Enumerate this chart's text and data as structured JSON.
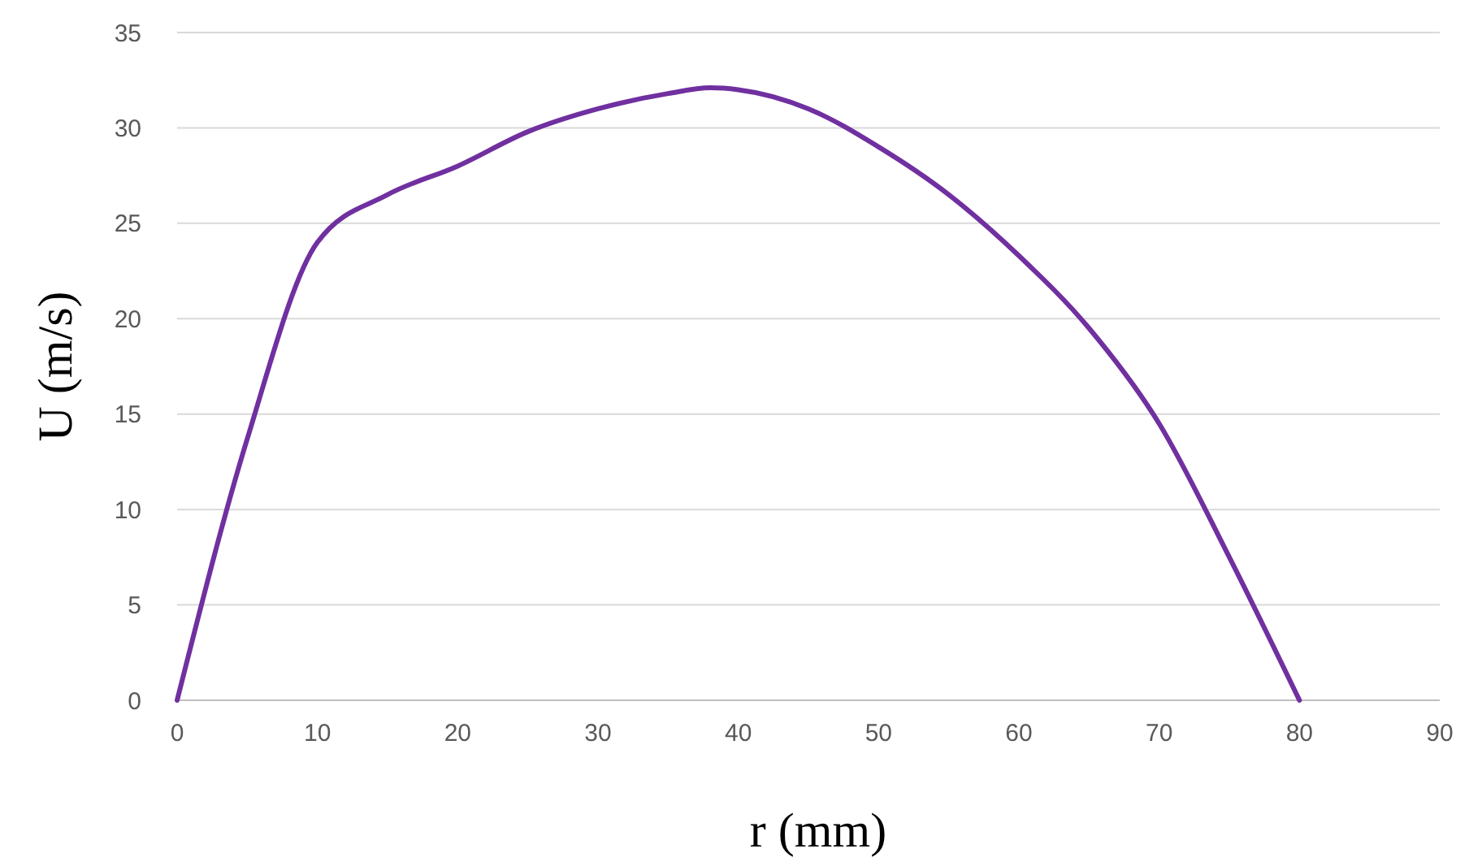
{
  "chart_data": {
    "type": "line",
    "xlabel": "r (mm)",
    "ylabel": "U (m/s)",
    "x": [
      0,
      5,
      10,
      15,
      20,
      25,
      30,
      35,
      38,
      40,
      45,
      50,
      55,
      60,
      65,
      70,
      75,
      80
    ],
    "series": [
      {
        "color": "#7030a0",
        "values": [
          0,
          13.7,
          24,
          26.5,
          28,
          29.8,
          31,
          31.8,
          32.1,
          32,
          31,
          29,
          26.5,
          23.3,
          19.5,
          14.5,
          7.5,
          0
        ]
      }
    ],
    "xlim": [
      0,
      90
    ],
    "xticks": [
      0,
      10,
      20,
      30,
      40,
      50,
      60,
      70,
      80,
      90
    ],
    "ylim": [
      0,
      35
    ],
    "yticks": [
      0,
      5,
      10,
      15,
      20,
      25,
      30,
      35
    ],
    "grid": "y",
    "marker": "none",
    "line_style": "solid"
  }
}
